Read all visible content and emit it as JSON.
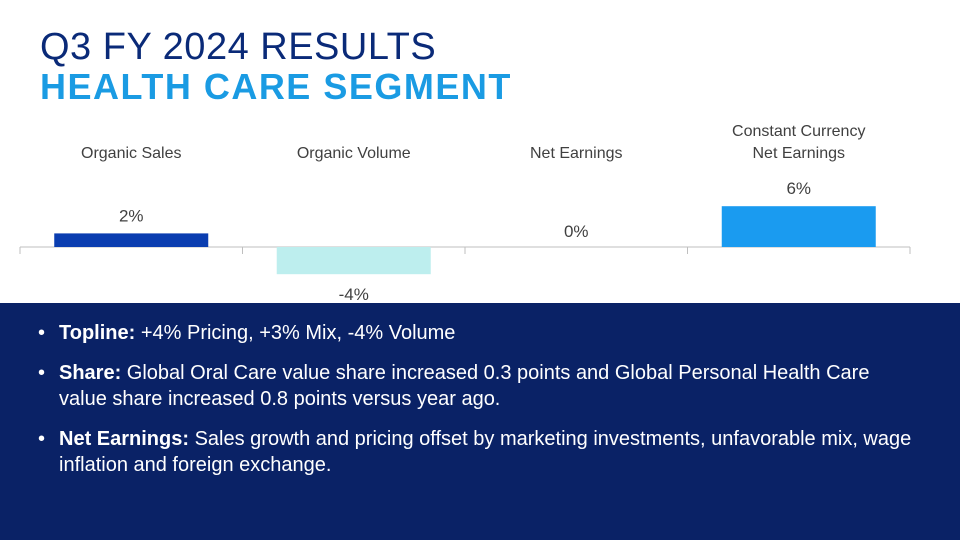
{
  "header": {
    "title": "Q3 FY 2024 RESULTS",
    "subtitle": "HEALTH CARE SEGMENT"
  },
  "chart_data": {
    "type": "bar",
    "categories": [
      [
        "Organic Sales"
      ],
      [
        "Organic Volume"
      ],
      [
        "Net Earnings"
      ],
      [
        "Constant Currency",
        "Net Earnings"
      ]
    ],
    "values": [
      2,
      -4,
      0,
      6
    ],
    "data_labels": [
      "2%",
      "-4%",
      "0%",
      "6%"
    ],
    "bar_colors": [
      "#0a3db0",
      "#bdeeee",
      "#ffffff",
      "#1a9bf0"
    ],
    "axis_color": "#bfbfbf",
    "ylim": [
      -4,
      6
    ]
  },
  "bullets": [
    {
      "marker": "•",
      "label": "Topline:",
      "text": " +4% Pricing, +3% Mix, -4% Volume"
    },
    {
      "marker": "•",
      "label": "Share:",
      "text": " Global Oral Care value share increased 0.3 points and Global Personal Health Care value share increased 0.8 points versus year ago."
    },
    {
      "marker": "•",
      "label": "Net Earnings:",
      "text": " Sales growth and pricing offset by marketing investments, unfavorable mix, wage inflation and foreign exchange."
    }
  ]
}
